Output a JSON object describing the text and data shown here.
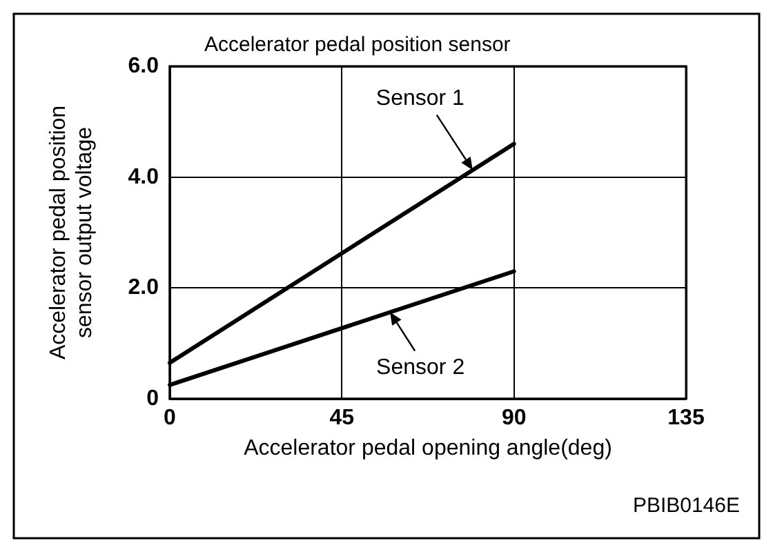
{
  "chart_data": {
    "type": "line",
    "title": "Accelerator pedal position sensor",
    "xlabel": "Accelerator pedal opening angle(deg)",
    "ylabel": "Accelerator pedal position\nsensor output voltage",
    "x": [
      0,
      90
    ],
    "series": [
      {
        "name": "Sensor 1",
        "color": "#000000",
        "values": [
          0.65,
          4.6
        ]
      },
      {
        "name": "Sensor 2",
        "color": "#000000",
        "values": [
          0.25,
          2.3
        ]
      }
    ],
    "xlim": [
      0,
      135
    ],
    "xticks": [
      0,
      45,
      90,
      135
    ],
    "ylim": [
      0,
      6
    ],
    "yticks": [
      0,
      {
        "value": 2,
        "label": "2.0"
      },
      {
        "value": 4,
        "label": "4.0"
      },
      {
        "value": 6,
        "label": "6.0"
      }
    ],
    "grid": true,
    "marker": "none",
    "line_style": "solid",
    "annotations": [
      "PBIB0146E"
    ]
  }
}
